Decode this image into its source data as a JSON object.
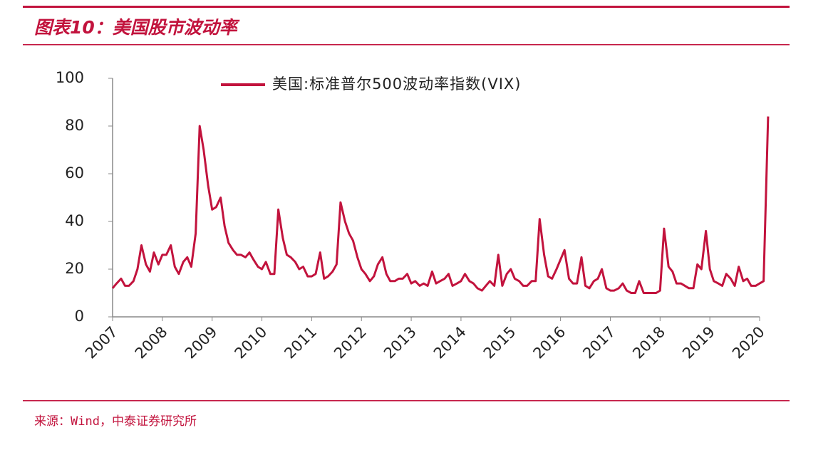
{
  "header": {
    "title": "图表10：美国股市波动率"
  },
  "chart_data": {
    "type": "line",
    "series": [
      {
        "name": "美国:标准普尔500波动率指数(VIX)",
        "color": "#c2133d",
        "values": [
          12,
          14,
          16,
          13,
          13,
          15,
          20,
          30,
          22,
          19,
          27,
          22,
          26,
          26,
          30,
          21,
          18,
          23,
          25,
          21,
          35,
          80,
          70,
          55,
          45,
          46,
          50,
          38,
          31,
          28,
          26,
          26,
          25,
          27,
          24,
          21,
          20,
          23,
          18,
          18,
          45,
          33,
          26,
          25,
          23,
          20,
          21,
          17,
          17,
          18,
          27,
          16,
          17,
          19,
          22,
          48,
          40,
          35,
          32,
          25,
          20,
          18,
          15,
          17,
          22,
          25,
          18,
          15,
          15,
          16,
          16,
          18,
          14,
          15,
          13,
          14,
          13,
          19,
          14,
          15,
          16,
          18,
          13,
          14,
          15,
          18,
          15,
          14,
          12,
          11,
          13,
          15,
          13,
          26,
          13,
          18,
          20,
          16,
          15,
          13,
          13,
          15,
          15,
          41,
          26,
          17,
          16,
          20,
          24,
          28,
          16,
          14,
          14,
          25,
          13,
          12,
          15,
          16,
          20,
          12,
          11,
          11,
          12,
          14,
          11,
          10,
          10,
          15,
          10,
          10,
          10,
          10,
          11,
          37,
          21,
          19,
          14,
          14,
          13,
          12,
          12,
          22,
          20,
          36,
          20,
          15,
          14,
          13,
          18,
          16,
          13,
          21,
          15,
          16,
          13,
          13,
          14,
          15,
          84
        ]
      }
    ],
    "x": [
      2007,
      2007.08,
      2007.17,
      2007.25,
      2007.33,
      2007.42,
      2007.5,
      2007.58,
      2007.67,
      2007.75,
      2007.83,
      2007.92,
      2008,
      2008.08,
      2008.17,
      2008.25,
      2008.33,
      2008.42,
      2008.5,
      2008.58,
      2008.67,
      2008.75,
      2008.83,
      2008.92,
      2009,
      2009.08,
      2009.17,
      2009.25,
      2009.33,
      2009.42,
      2009.5,
      2009.58,
      2009.67,
      2009.75,
      2009.83,
      2009.92,
      2010,
      2010.08,
      2010.17,
      2010.25,
      2010.33,
      2010.42,
      2010.5,
      2010.58,
      2010.67,
      2010.75,
      2010.83,
      2010.92,
      2011,
      2011.08,
      2011.17,
      2011.25,
      2011.33,
      2011.42,
      2011.5,
      2011.58,
      2011.67,
      2011.75,
      2011.83,
      2011.92,
      2012,
      2012.08,
      2012.17,
      2012.25,
      2012.33,
      2012.42,
      2012.5,
      2012.58,
      2012.67,
      2012.75,
      2012.83,
      2012.92,
      2013,
      2013.08,
      2013.17,
      2013.25,
      2013.33,
      2013.42,
      2013.5,
      2013.58,
      2013.67,
      2013.75,
      2013.83,
      2013.92,
      2014,
      2014.08,
      2014.17,
      2014.25,
      2014.33,
      2014.42,
      2014.5,
      2014.58,
      2014.67,
      2014.75,
      2014.83,
      2014.92,
      2015,
      2015.08,
      2015.17,
      2015.25,
      2015.33,
      2015.42,
      2015.5,
      2015.58,
      2015.67,
      2015.75,
      2015.83,
      2015.92,
      2016,
      2016.08,
      2016.17,
      2016.25,
      2016.33,
      2016.42,
      2016.5,
      2016.58,
      2016.67,
      2016.75,
      2016.83,
      2016.92,
      2017,
      2017.08,
      2017.17,
      2017.25,
      2017.33,
      2017.42,
      2017.5,
      2017.58,
      2017.67,
      2017.75,
      2017.83,
      2017.92,
      2018,
      2018.08,
      2018.17,
      2018.25,
      2018.33,
      2018.42,
      2018.5,
      2018.58,
      2018.67,
      2018.75,
      2018.83,
      2018.92,
      2019,
      2019.08,
      2019.17,
      2019.25,
      2019.33,
      2019.42,
      2019.5,
      2019.58,
      2019.67,
      2019.75,
      2019.83,
      2019.92,
      2020,
      2020.08,
      2020.17
    ],
    "xlim": [
      2007,
      2020.2
    ],
    "xticks": [
      2007,
      2008,
      2009,
      2010,
      2011,
      2012,
      2013,
      2014,
      2015,
      2016,
      2017,
      2018,
      2019,
      2020
    ],
    "ylim": [
      0,
      100
    ],
    "yticks": [
      0,
      20,
      40,
      60,
      80,
      100
    ],
    "grid": false,
    "legend": "top"
  },
  "footer": {
    "source": "来源：Wind，中泰证券研究所"
  }
}
